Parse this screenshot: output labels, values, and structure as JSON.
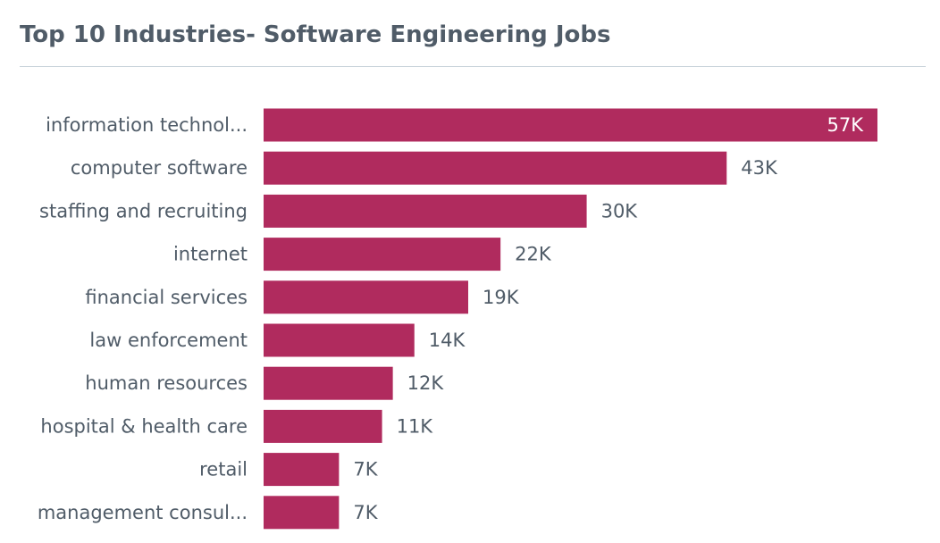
{
  "page": {
    "title": "Top 10 Industries- Software Engineering Jobs"
  },
  "colors": {
    "bar": "#b02b5e",
    "title": "#505c68",
    "label": "#505c68",
    "rule": "#c9d3db"
  },
  "chart_data": {
    "type": "bar",
    "orientation": "horizontal",
    "title": "Top 10 Industries- Software Engineering Jobs",
    "xlabel": "",
    "ylabel": "",
    "categories": [
      "information technol...",
      "computer software",
      "staffing and recruiting",
      "internet",
      "financial services",
      "law enforcement",
      "human resources",
      "hospital & health care",
      "retail",
      "management consul..."
    ],
    "values": [
      57,
      43,
      30,
      22,
      19,
      14,
      12,
      11,
      7,
      7
    ],
    "value_labels": [
      "57K",
      "43K",
      "30K",
      "22K",
      "19K",
      "14K",
      "12K",
      "11K",
      "7K",
      "7K"
    ],
    "units": "thousands of jobs",
    "xlim": [
      0,
      57
    ],
    "grid": false,
    "legend": "none"
  }
}
